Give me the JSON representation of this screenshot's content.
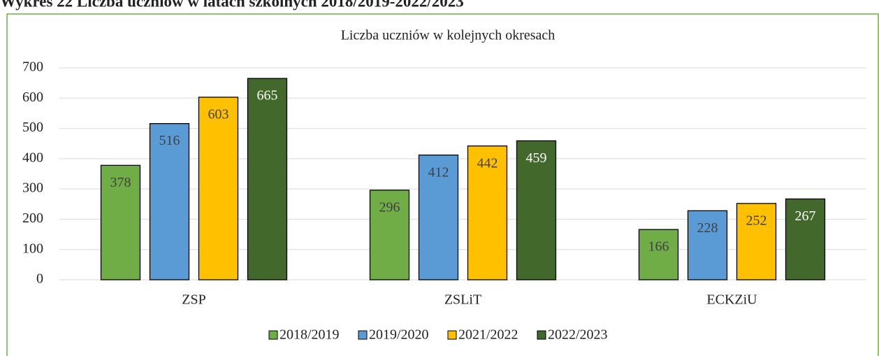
{
  "heading": "Wykres 22 Liczba uczniów w latach szkolnych 2018/2019-2022/2023",
  "chart_data": {
    "type": "bar",
    "title": "Liczba uczniów w kolejnych okresach",
    "categories": [
      "ZSP",
      "ZSLiT",
      "ECKZiU"
    ],
    "series": [
      {
        "name": "2018/2019",
        "color": "#70ad47",
        "values": [
          378,
          296,
          166
        ]
      },
      {
        "name": "2019/2020",
        "color": "#5b9bd5",
        "values": [
          516,
          412,
          228
        ]
      },
      {
        "name": "2021/2022",
        "color": "#ffc000",
        "values": [
          603,
          442,
          252
        ]
      },
      {
        "name": "2022/2023",
        "color": "#43682b",
        "values": [
          665,
          459,
          267
        ]
      }
    ],
    "ylim": [
      0,
      700
    ],
    "yticks": [
      0,
      100,
      200,
      300,
      400,
      500,
      600,
      700
    ],
    "grid": true,
    "legend": "bottom"
  }
}
